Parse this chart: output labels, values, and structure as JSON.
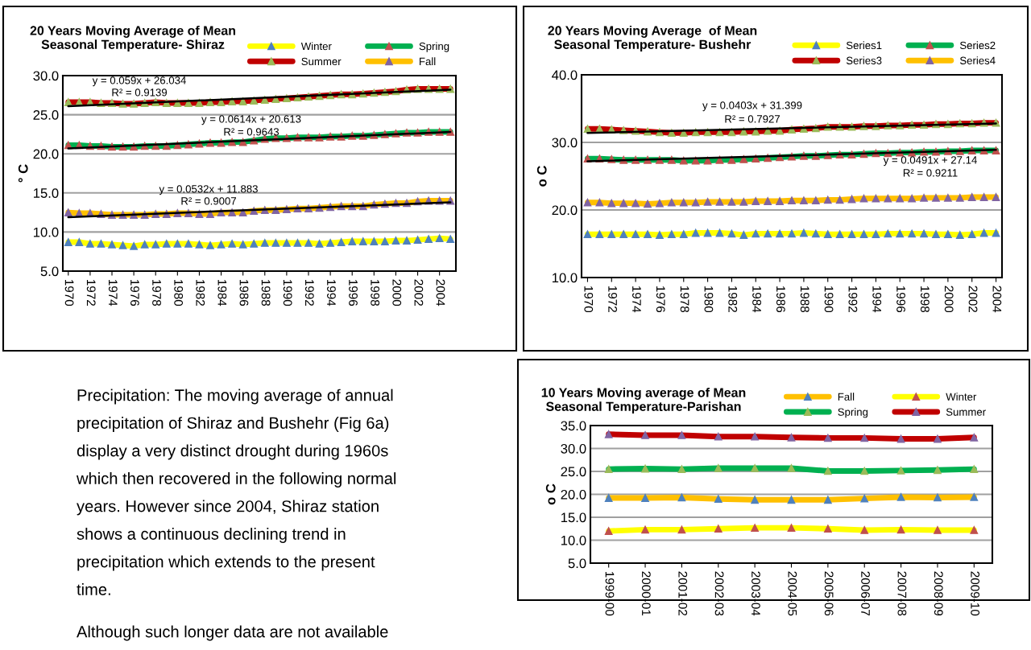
{
  "chart_data": [
    {
      "type": "line",
      "title": "20 Years Moving Average of Mean\nSeasonal Temperature- Shiraz",
      "ylabel": "° C",
      "marker": "triangle",
      "grid": "y",
      "legend": "top right",
      "x": [
        1970,
        1971,
        1972,
        1973,
        1974,
        1975,
        1976,
        1977,
        1978,
        1979,
        1980,
        1981,
        1982,
        1983,
        1984,
        1985,
        1986,
        1987,
        1988,
        1989,
        1990,
        1991,
        1992,
        1993,
        1994,
        1995,
        1996,
        1997,
        1998,
        1999,
        2000,
        2001,
        2002,
        2003,
        2004,
        2005
      ],
      "xlim": [
        1969.5,
        2005.5
      ],
      "xticks": [
        1970,
        1972,
        1974,
        1976,
        1978,
        1980,
        1982,
        1984,
        1986,
        1988,
        1990,
        1992,
        1994,
        1996,
        1998,
        2000,
        2002,
        2004
      ],
      "ylim": [
        5,
        30
      ],
      "yticks": [
        {
          "value": 5,
          "label": "5.0"
        },
        {
          "value": 10,
          "label": "10.0"
        },
        {
          "value": 15,
          "label": "15.0"
        },
        {
          "value": 20,
          "label": "20.0"
        },
        {
          "value": 25,
          "label": "25.0"
        },
        {
          "value": 30,
          "label": "30.0"
        }
      ],
      "series": [
        {
          "name": "Winter",
          "color": "#ffff00",
          "values": [
            8.7,
            8.7,
            8.5,
            8.5,
            8.4,
            8.3,
            8.2,
            8.4,
            8.4,
            8.5,
            8.5,
            8.5,
            8.4,
            8.3,
            8.4,
            8.5,
            8.4,
            8.5,
            8.6,
            8.6,
            8.6,
            8.6,
            8.6,
            8.5,
            8.6,
            8.7,
            8.8,
            8.8,
            8.8,
            8.8,
            8.9,
            8.9,
            9.0,
            9.1,
            9.2,
            9.1
          ]
        },
        {
          "name": "Spring",
          "color": "#00b050",
          "values": [
            21.1,
            21.1,
            21.0,
            21.0,
            20.9,
            20.9,
            20.9,
            21.0,
            21.0,
            21.0,
            21.1,
            21.2,
            21.3,
            21.4,
            21.4,
            21.5,
            21.5,
            21.7,
            21.9,
            22.0,
            22.0,
            22.1,
            22.1,
            22.1,
            22.2,
            22.2,
            22.3,
            22.3,
            22.4,
            22.5,
            22.6,
            22.7,
            22.7,
            22.8,
            22.8,
            22.8
          ]
        },
        {
          "name": "Summer",
          "color": "#c00000",
          "values": [
            26.6,
            26.6,
            26.6,
            26.5,
            26.5,
            26.4,
            26.4,
            26.5,
            26.6,
            26.5,
            26.5,
            26.5,
            26.5,
            26.6,
            26.6,
            26.7,
            26.7,
            26.8,
            26.9,
            27.0,
            27.1,
            27.2,
            27.3,
            27.4,
            27.5,
            27.6,
            27.6,
            27.7,
            27.8,
            27.9,
            28.0,
            28.2,
            28.3,
            28.3,
            28.3,
            28.3
          ]
        },
        {
          "name": "Fall",
          "color": "#ffc000",
          "values": [
            12.5,
            12.4,
            12.4,
            12.3,
            12.2,
            12.2,
            12.2,
            12.2,
            12.3,
            12.3,
            12.4,
            12.4,
            12.3,
            12.3,
            12.5,
            12.5,
            12.5,
            12.7,
            12.8,
            12.8,
            12.9,
            13.0,
            13.0,
            13.1,
            13.2,
            13.3,
            13.3,
            13.3,
            13.5,
            13.6,
            13.7,
            13.7,
            13.9,
            14.0,
            14.0,
            14.0
          ]
        },
        {
          "type": "line",
          "marker": "none",
          "color": "#000000",
          "x": [
            1970,
            2005
          ],
          "values": [
            26.1,
            28.2
          ]
        },
        {
          "type": "line",
          "marker": "none",
          "color": "#000000",
          "x": [
            1970,
            2005
          ],
          "values": [
            20.7,
            22.8
          ]
        },
        {
          "type": "line",
          "marker": "none",
          "color": "#000000",
          "x": [
            1970,
            2005
          ],
          "values": [
            11.9,
            13.8
          ]
        }
      ],
      "annotations": [
        "y = 0.059x + 26.034",
        "R² = 0.9139",
        "y = 0.0614x + 20.613",
        "R² = 0.9643",
        "y = 0.0532x + 11.883",
        "R² = 0.9007"
      ]
    },
    {
      "type": "line",
      "title": "20 Years Moving Average  of Mean\nSeasonal Temperature- Bushehr",
      "ylabel": "o C",
      "marker": "triangle",
      "grid": "y",
      "legend": "top right",
      "x": [
        1970,
        1971,
        1972,
        1973,
        1974,
        1975,
        1976,
        1977,
        1978,
        1979,
        1980,
        1981,
        1982,
        1983,
        1984,
        1985,
        1986,
        1987,
        1988,
        1989,
        1990,
        1991,
        1992,
        1993,
        1994,
        1995,
        1996,
        1997,
        1998,
        1999,
        2000,
        2001,
        2002,
        2003,
        2004
      ],
      "xlim": [
        1969.5,
        2004.5
      ],
      "xticks": [
        1970,
        1972,
        1974,
        1976,
        1978,
        1980,
        1982,
        1984,
        1986,
        1988,
        1990,
        1992,
        1994,
        1996,
        1998,
        2000,
        2002,
        2004
      ],
      "ylim": [
        10,
        40
      ],
      "yticks": [
        {
          "value": 10,
          "label": "10.0"
        },
        {
          "value": 20,
          "label": "20.0"
        },
        {
          "value": 30,
          "label": "30.0"
        },
        {
          "value": 40,
          "label": "40.0"
        }
      ],
      "series": [
        {
          "name": "Series1",
          "color": "#ffff00",
          "values": [
            16.4,
            16.4,
            16.4,
            16.4,
            16.4,
            16.4,
            16.3,
            16.4,
            16.4,
            16.6,
            16.6,
            16.6,
            16.5,
            16.3,
            16.5,
            16.5,
            16.5,
            16.5,
            16.6,
            16.5,
            16.4,
            16.4,
            16.4,
            16.4,
            16.4,
            16.5,
            16.5,
            16.5,
            16.5,
            16.4,
            16.4,
            16.3,
            16.4,
            16.6,
            16.6
          ]
        },
        {
          "name": "Series2",
          "color": "#00b050",
          "values": [
            27.6,
            27.6,
            27.5,
            27.4,
            27.4,
            27.4,
            27.4,
            27.4,
            27.3,
            27.3,
            27.3,
            27.4,
            27.4,
            27.5,
            27.6,
            27.7,
            27.8,
            27.9,
            28.0,
            28.0,
            28.1,
            28.2,
            28.2,
            28.3,
            28.4,
            28.4,
            28.5,
            28.5,
            28.6,
            28.6,
            28.7,
            28.7,
            28.8,
            28.8,
            28.8
          ]
        },
        {
          "name": "Series3",
          "color": "#c00000",
          "values": [
            32.0,
            32.0,
            31.9,
            31.8,
            31.7,
            31.6,
            31.5,
            31.4,
            31.4,
            31.5,
            31.5,
            31.5,
            31.5,
            31.6,
            31.6,
            31.7,
            31.7,
            31.9,
            32.0,
            32.1,
            32.3,
            32.3,
            32.3,
            32.4,
            32.4,
            32.5,
            32.5,
            32.6,
            32.6,
            32.7,
            32.7,
            32.8,
            32.8,
            32.9,
            32.9
          ]
        },
        {
          "name": "Series4",
          "color": "#ffc000",
          "values": [
            21.1,
            21.1,
            21.0,
            21.0,
            21.0,
            20.9,
            21.0,
            21.1,
            21.1,
            21.1,
            21.2,
            21.2,
            21.2,
            21.2,
            21.3,
            21.3,
            21.3,
            21.4,
            21.4,
            21.4,
            21.5,
            21.5,
            21.6,
            21.7,
            21.7,
            21.7,
            21.7,
            21.7,
            21.8,
            21.8,
            21.8,
            21.8,
            21.9,
            21.9,
            21.9
          ]
        },
        {
          "type": "line",
          "marker": "none",
          "color": "#000000",
          "x": [
            1970,
            2004
          ],
          "values": [
            31.4,
            32.8
          ]
        },
        {
          "type": "line",
          "marker": "none",
          "color": "#000000",
          "x": [
            1970,
            2004
          ],
          "values": [
            27.2,
            28.9
          ]
        }
      ],
      "annotations": [
        "y = 0.0403x + 31.399",
        "R² = 0.7927",
        "y = 0.0491x + 27.14",
        "R² = 0.9211"
      ]
    },
    {
      "type": "line",
      "title": "10 Years Moving average of Mean\nSeasonal Temperature-Parishan",
      "ylabel": "o C",
      "marker": "triangle",
      "grid": "y",
      "legend": "top right",
      "categories": [
        "1999-00",
        "2000-01",
        "2001-02",
        "2002-03",
        "2003-04",
        "2004-05",
        "2005-06",
        "2006-07",
        "2007-08",
        "2008-09",
        "2009-10"
      ],
      "ylim": [
        5,
        35
      ],
      "yticks": [
        {
          "value": 5,
          "label": "5.0"
        },
        {
          "value": 10,
          "label": "10.0"
        },
        {
          "value": 15,
          "label": "15.0"
        },
        {
          "value": 20,
          "label": "20.0"
        },
        {
          "value": 25,
          "label": "25.0"
        },
        {
          "value": 30,
          "label": "30.0"
        },
        {
          "value": 35,
          "label": "35.0"
        }
      ],
      "series": [
        {
          "name": "Fall",
          "color": "#ffc000",
          "values": [
            19.2,
            19.2,
            19.3,
            19.0,
            18.8,
            18.8,
            18.8,
            19.1,
            19.4,
            19.3,
            19.4
          ]
        },
        {
          "name": "Winter",
          "color": "#ffff00",
          "values": [
            12.0,
            12.3,
            12.3,
            12.5,
            12.7,
            12.7,
            12.5,
            12.2,
            12.3,
            12.2,
            12.2
          ]
        },
        {
          "name": "Spring",
          "color": "#00b050",
          "values": [
            25.5,
            25.6,
            25.5,
            25.7,
            25.7,
            25.7,
            25.1,
            25.1,
            25.2,
            25.3,
            25.5
          ]
        },
        {
          "name": "Summer",
          "color": "#c00000",
          "values": [
            33.1,
            32.9,
            32.9,
            32.6,
            32.6,
            32.4,
            32.3,
            32.3,
            32.1,
            32.1,
            32.4
          ]
        }
      ],
      "annotations": [
        "Precipitation: The moving average of annual",
        "precipitation of Shiraz and Bushehr (Fig 6a)",
        "display a very distinct drought during 1960s",
        "which then recovered in the following normal",
        "years. However since 2004, Shiraz station",
        "shows a continuous declining trend in",
        "precipitation which extends to the present",
        "time.",
        "Although such longer data are not available"
      ]
    }
  ]
}
